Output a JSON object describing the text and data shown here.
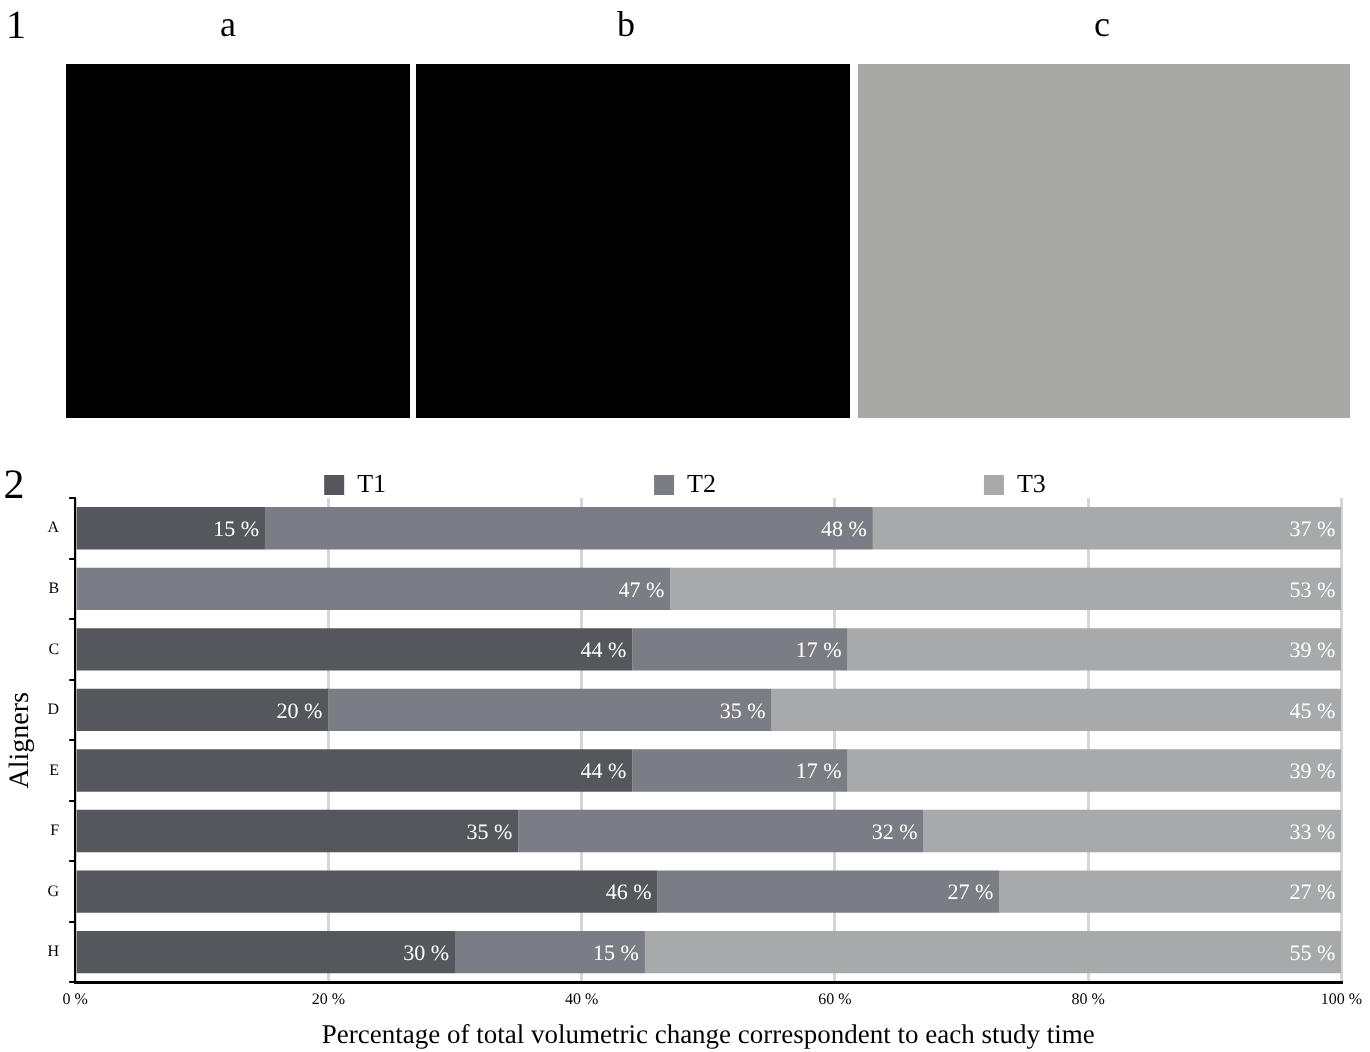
{
  "chart_data": {
    "type": "bar",
    "orientation": "horizontal",
    "stacked": true,
    "annotations": [
      "1",
      "a",
      "b",
      "c",
      "2"
    ],
    "xlabel": "Percentage of total volumetric change correspondent to each study time",
    "ylabel": "Aligners",
    "categories": [
      "A",
      "B",
      "C",
      "D",
      "E",
      "F",
      "G",
      "H"
    ],
    "series": [
      {
        "name": "T1",
        "color": "#55575d",
        "values": [
          15,
          null,
          44,
          20,
          44,
          35,
          46,
          30
        ],
        "value_labels": [
          "15 %",
          null,
          "44 %",
          "20 %",
          "44 %",
          "35 %",
          "46 %",
          "30 %"
        ]
      },
      {
        "name": "T2",
        "color": "#7a7d84",
        "values": [
          48,
          47,
          17,
          35,
          17,
          32,
          27,
          15
        ],
        "value_labels": [
          "48 %",
          "47 %",
          "17 %",
          "35 %",
          "17 %",
          "32 %",
          "27 %",
          "15 %"
        ]
      },
      {
        "name": "T3",
        "color": "#a7a9ab",
        "values": [
          37,
          53,
          39,
          45,
          39,
          33,
          27,
          55
        ],
        "value_labels": [
          "37 %",
          "53 %",
          "39 %",
          "45 %",
          "39 %",
          "33 %",
          "27 %",
          "55 %"
        ]
      }
    ],
    "xlim": [
      0,
      100
    ],
    "xticks": [
      {
        "value": 0,
        "label": "0 %"
      },
      {
        "value": 20,
        "label": "20 %"
      },
      {
        "value": 40,
        "label": "40 %"
      },
      {
        "value": 60,
        "label": "60 %"
      },
      {
        "value": 80,
        "label": "80 %"
      },
      {
        "value": 100,
        "label": "100 %"
      }
    ],
    "grid": "x",
    "legend": "top"
  }
}
